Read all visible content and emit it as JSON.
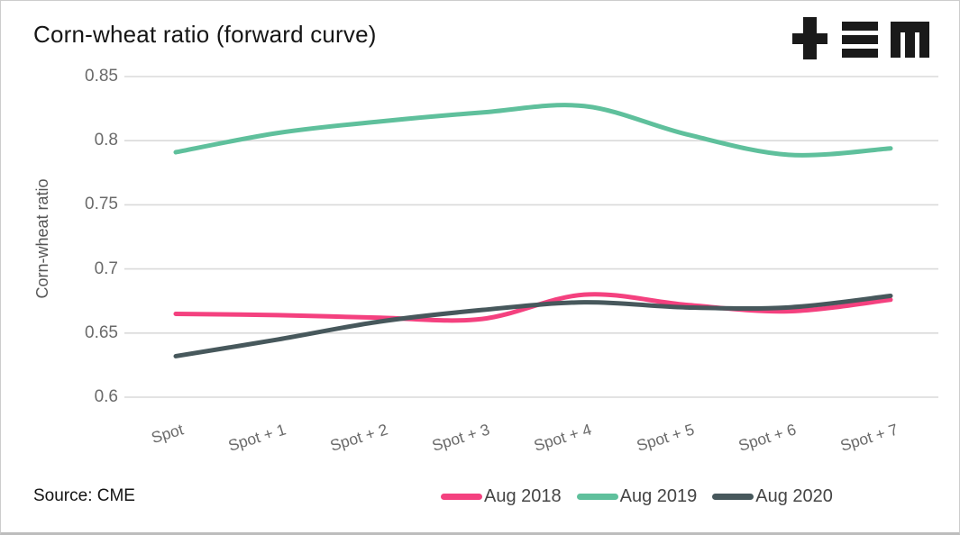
{
  "header": {
    "title": "Corn-wheat ratio (forward curve)",
    "logo": "plus-equals-m-logo"
  },
  "footer": {
    "source": "Source: CME"
  },
  "colors": {
    "grid": "#dadada",
    "tick_text": "#6a6a6a",
    "axis_title_text": "#565656",
    "title_text": "#161616",
    "legend_text": "#454545",
    "logo": "#1a1a1a",
    "border": "#cccccc",
    "background": "#ffffff"
  },
  "chart_data": {
    "type": "line",
    "title": "Corn-wheat ratio (forward curve)",
    "xlabel": "",
    "ylabel": "Corn-wheat ratio",
    "categories": [
      "Spot",
      "Spot + 1",
      "Spot + 2",
      "Spot + 3",
      "Spot + 4",
      "Spot + 5",
      "Spot + 6",
      "Spot + 7"
    ],
    "series": [
      {
        "name": "Aug 2018",
        "color": "#f4417f",
        "values": [
          0.665,
          0.664,
          0.662,
          0.661,
          0.68,
          0.672,
          0.667,
          0.676
        ]
      },
      {
        "name": "Aug 2019",
        "color": "#5fc09c",
        "values": [
          0.791,
          0.806,
          0.815,
          0.822,
          0.827,
          0.805,
          0.789,
          0.794
        ]
      },
      {
        "name": "Aug 2020",
        "color": "#47585c",
        "values": [
          0.632,
          0.645,
          0.659,
          0.668,
          0.674,
          0.67,
          0.67,
          0.679
        ]
      }
    ],
    "ylim": [
      0.6,
      0.85
    ],
    "yticks": [
      0.85,
      0.8,
      0.75,
      0.7,
      0.65,
      0.6
    ],
    "ytick_labels": [
      "0.85",
      "0.8",
      "0.75",
      "0.7",
      "0.65",
      "0.6"
    ],
    "grid": "horizontal-only",
    "line_smoothing": "spline",
    "legend_position": "bottom-right",
    "source": "Source: CME"
  }
}
